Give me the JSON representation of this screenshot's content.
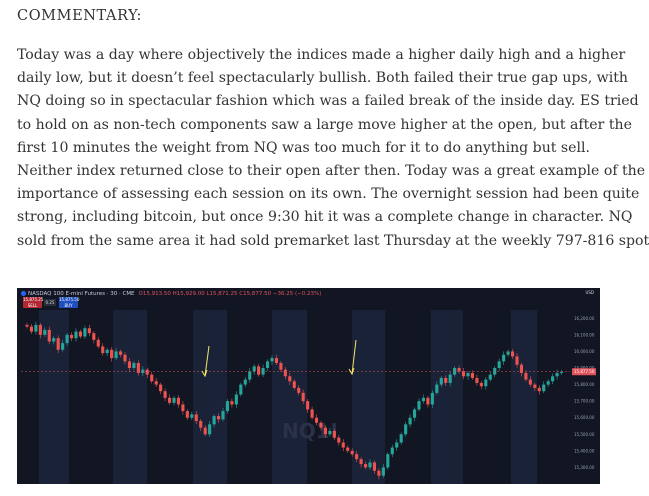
{
  "heading": "COMMENTARY:",
  "paragraph_lines": [
    "Today was a day where objectively the indices made a higher daily high and a higher",
    "daily low, but it doesn’t feel spectacularly bullish. Both failed their true gap ups, with",
    "NQ doing so in spectacular fashion which was a failed break of the inside day. ES tried",
    "to hold on as non-tech components saw a large move higher at the open, but after the",
    "first 10 minutes the weight from NQ was too much for it to do anything but sell.",
    "Neither index returned close to their open after then. Today was a great example of the",
    "importance of assessing each session on its own. The overnight session had been quite",
    "strong, including bitcoin, but once 9:30 hit it was a complete change in character. NQ",
    "sold from the same area it had sold premarket last Thursday at the weekly 797-816 spot"
  ],
  "chart": {
    "title": "NASDAQ 100 E-mini Futures · 30 · CME",
    "ohlc": "O15,913.50 H15,929.00 L15,871.25 C15,877.50 −36.25 (−0.23%)",
    "sell_price": "15,875.25",
    "sell_label": "SELL",
    "spread": "0.25",
    "buy_price": "15,875.50",
    "buy_label": "BUY",
    "currency": "USD",
    "watermark": "NQ1!",
    "last_price_label": "15,877.50",
    "y_ticks": [
      "16,200.00",
      "16,100.00",
      "16,000.00",
      "15,900.00",
      "15,800.00",
      "15,700.00",
      "15,600.00",
      "15,500.00",
      "15,400.00",
      "15,300.00"
    ],
    "colors": {
      "background": "#121623",
      "session_band": "#1a2238",
      "up": "#26a69a",
      "down": "#ef5350",
      "arrow": "#f5e663",
      "price_line": "#e0525b"
    }
  },
  "chart_data": {
    "type": "candlestick",
    "ylim": [
      15200,
      16250
    ],
    "last_price": 15877.5,
    "closes": [
      16150,
      16120,
      16160,
      16100,
      16130,
      16060,
      16080,
      16010,
      16050,
      16100,
      16080,
      16120,
      16090,
      16140,
      16110,
      16070,
      16030,
      15990,
      16010,
      15960,
      16000,
      15980,
      15940,
      15900,
      15930,
      15870,
      15890,
      15860,
      15820,
      15800,
      15760,
      15720,
      15690,
      15720,
      15680,
      15640,
      15600,
      15620,
      15580,
      15540,
      15500,
      15560,
      15610,
      15590,
      15640,
      15700,
      15680,
      15740,
      15800,
      15830,
      15880,
      15910,
      15860,
      15900,
      15940,
      15960,
      15930,
      15890,
      15850,
      15820,
      15780,
      15750,
      15700,
      15650,
      15600,
      15570,
      15540,
      15500,
      15520,
      15480,
      15450,
      15420,
      15400,
      15380,
      15350,
      15320,
      15300,
      15330,
      15280,
      15250,
      15300,
      15380,
      15420,
      15450,
      15500,
      15560,
      15600,
      15650,
      15700,
      15720,
      15680,
      15750,
      15800,
      15840,
      15810,
      15860,
      15900,
      15880,
      15850,
      15870,
      15840,
      15810,
      15790,
      15830,
      15860,
      15900,
      15940,
      15980,
      16000,
      15970,
      15920,
      15870,
      15830,
      15800,
      15780,
      15760,
      15800,
      15820,
      15850,
      15870,
      15877
    ]
  }
}
